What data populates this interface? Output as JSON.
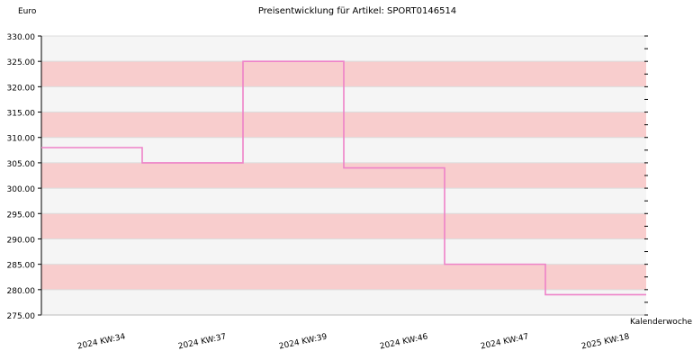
{
  "chart_data": {
    "type": "line",
    "step": true,
    "title": "Preisentwicklung für Artikel: SPORT0146514",
    "ylabel": "Euro",
    "xlabel": "Kalenderwoche",
    "categories": [
      "2024 KW:34",
      "2024 KW:37",
      "2024 KW:39",
      "2024 KW:46",
      "2024 KW:47",
      "2025 KW:18"
    ],
    "series": [
      {
        "values": [
          308.0,
          305.0,
          325.0,
          304.0,
          285.0,
          279.0
        ]
      }
    ],
    "ylim": [
      275,
      330
    ],
    "yticks": [
      "275.00",
      "280.00",
      "285.00",
      "290.00",
      "295.00",
      "300.00",
      "305.00",
      "310.00",
      "315.00",
      "320.00",
      "325.00",
      "330.00"
    ],
    "grid": true,
    "colors": {
      "line": "#ee82c8",
      "band_light": "#f5f5f5",
      "band_dark": "#f8cdcd",
      "axis": "#000000"
    }
  }
}
